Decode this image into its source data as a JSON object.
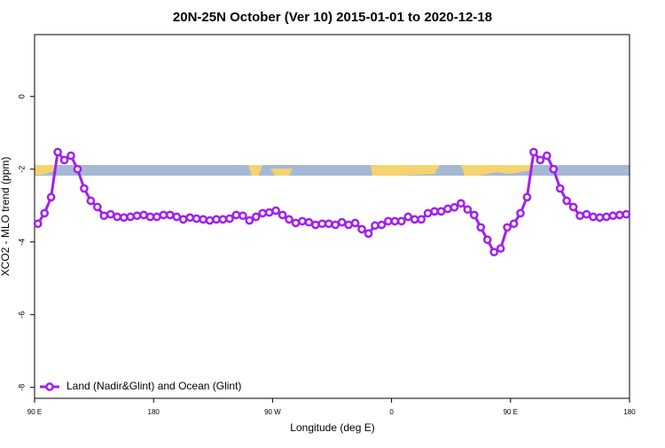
{
  "chart_data": {
    "type": "line",
    "title": "20N-25N October (Ver 10)   2015-01-01 to 2020-12-18",
    "x_label": "Longitude (deg E)",
    "y_label": "XCO2 - MLO trend (ppm)",
    "xlim": [
      90,
      540
    ],
    "ylim": [
      -8.3,
      1.7
    ],
    "xticks": [
      {
        "value": 90,
        "label": "90 E"
      },
      180,
      {
        "value": 270,
        "label": "90 W"
      },
      {
        "value": 360,
        "label": "0"
      },
      {
        "value": 450,
        "label": "90 E"
      },
      {
        "value": 540,
        "label": "180"
      }
    ],
    "yticks": [
      0,
      -2,
      -4,
      -6,
      -8
    ],
    "grid": false,
    "legend": "bottom-left",
    "x": [
      92.5,
      97.5,
      102.5,
      107.5,
      112.5,
      117.5,
      122.5,
      127.5,
      132.5,
      137.5,
      142.5,
      147.5,
      152.5,
      157.5,
      162.5,
      167.5,
      172.5,
      177.5,
      182.5,
      187.5,
      192.5,
      197.5,
      202.5,
      207.5,
      212.5,
      217.5,
      222.5,
      227.5,
      232.5,
      237.5,
      242.5,
      247.5,
      252.5,
      257.5,
      262.5,
      267.5,
      272.5,
      277.5,
      282.5,
      287.5,
      292.5,
      297.5,
      302.5,
      307.5,
      312.5,
      317.5,
      322.5,
      327.5,
      332.5,
      337.5,
      342.5,
      347.5,
      352.5,
      357.5,
      362.5,
      367.5,
      372.5,
      377.5,
      382.5,
      387.5,
      392.5,
      397.5,
      402.5,
      407.5,
      412.5,
      417.5,
      422.5,
      427.5,
      432.5,
      437.5,
      442.5,
      447.5,
      452.5,
      457.5,
      462.5,
      467.5,
      472.5,
      477.5,
      482.5,
      487.5,
      492.5,
      497.5,
      502.5,
      507.5,
      512.5,
      517.5,
      522.5,
      527.5,
      532.5,
      537.5
    ],
    "series": [
      {
        "name": "Land (Nadir&Glint) and Ocean (Glint)",
        "color": "#a020f0",
        "values": [
          -3.5,
          -3.21,
          -2.77,
          -1.53,
          -1.75,
          -1.63,
          -2.0,
          -2.53,
          -2.87,
          -3.04,
          -3.28,
          -3.24,
          -3.31,
          -3.33,
          -3.31,
          -3.28,
          -3.26,
          -3.31,
          -3.31,
          -3.26,
          -3.26,
          -3.31,
          -3.38,
          -3.33,
          -3.36,
          -3.38,
          -3.41,
          -3.38,
          -3.38,
          -3.36,
          -3.26,
          -3.28,
          -3.41,
          -3.31,
          -3.21,
          -3.19,
          -3.14,
          -3.26,
          -3.38,
          -3.48,
          -3.43,
          -3.46,
          -3.53,
          -3.5,
          -3.5,
          -3.53,
          -3.46,
          -3.53,
          -3.48,
          -3.65,
          -3.77,
          -3.55,
          -3.53,
          -3.43,
          -3.43,
          -3.43,
          -3.31,
          -3.38,
          -3.38,
          -3.21,
          -3.16,
          -3.16,
          -3.09,
          -3.05,
          -2.94,
          -3.11,
          -3.26,
          -3.6,
          -3.94,
          -4.28,
          -4.18,
          -3.6,
          -3.5,
          -3.21,
          -2.77,
          -1.53,
          -1.75,
          -1.63,
          -2.0,
          -2.53,
          -2.87,
          -3.04,
          -3.28,
          -3.24,
          -3.31,
          -3.33,
          -3.31,
          -3.28,
          -3.26,
          -3.24
        ]
      }
    ]
  }
}
